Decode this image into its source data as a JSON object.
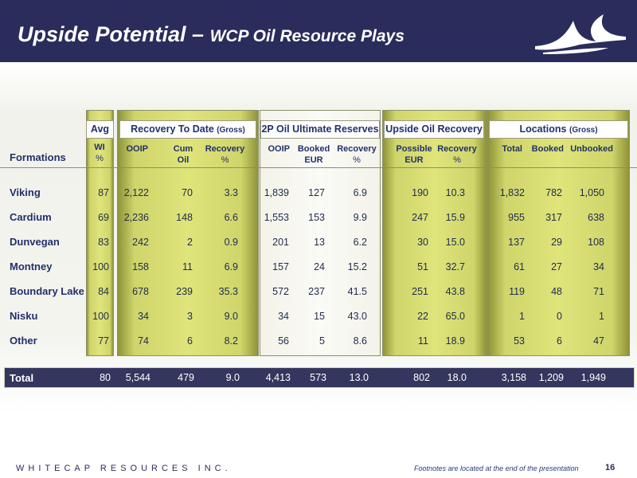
{
  "header": {
    "title_main": "Upside Potential – ",
    "title_sub": "WCP Oil Resource Plays"
  },
  "colors": {
    "header_bg": "#2a2c5c",
    "panel_green": "#d9de74",
    "text": "#22306b",
    "total_bg": "#34365f"
  },
  "groups": {
    "avg": "Avg",
    "recovery_to_date": "Recovery To Date",
    "recovery_to_date_small": "(Gross)",
    "ultimate": "2P Oil Ultimate Reserves",
    "upside": "Upside Oil Recovery",
    "locations": "Locations",
    "locations_small": "(Gross)"
  },
  "columns": {
    "formations": "Formations",
    "wi_1": "WI",
    "wi_2": "%",
    "ooip": "OOIP",
    "cum_1": "Cum",
    "cum_2": "Oil",
    "rec_1": "Recovery",
    "rec_2": "%",
    "ooip2": "OOIP",
    "booked_1": "Booked",
    "booked_2": "EUR",
    "rec2_1": "Recovery",
    "rec2_2": "%",
    "possible_1": "Possible",
    "possible_2": "EUR",
    "rec3_1": "Recovery",
    "rec3_2": "%",
    "total": "Total",
    "booked": "Booked",
    "unbooked": "Unbooked"
  },
  "rows": [
    {
      "name": "Viking",
      "wi": "87",
      "ooip": "2,122",
      "cum": "70",
      "rec": "3.3",
      "ooip2": "1,839",
      "booked_eur": "127",
      "rec2": "6.9",
      "possible": "190",
      "rec3": "10.3",
      "loc_total": "1,832",
      "loc_booked": "782",
      "loc_unbooked": "1,050"
    },
    {
      "name": "Cardium",
      "wi": "69",
      "ooip": "2,236",
      "cum": "148",
      "rec": "6.6",
      "ooip2": "1,553",
      "booked_eur": "153",
      "rec2": "9.9",
      "possible": "247",
      "rec3": "15.9",
      "loc_total": "955",
      "loc_booked": "317",
      "loc_unbooked": "638"
    },
    {
      "name": "Dunvegan",
      "wi": "83",
      "ooip": "242",
      "cum": "2",
      "rec": "0.9",
      "ooip2": "201",
      "booked_eur": "13",
      "rec2": "6.2",
      "possible": "30",
      "rec3": "15.0",
      "loc_total": "137",
      "loc_booked": "29",
      "loc_unbooked": "108"
    },
    {
      "name": "Montney",
      "wi": "100",
      "ooip": "158",
      "cum": "11",
      "rec": "6.9",
      "ooip2": "157",
      "booked_eur": "24",
      "rec2": "15.2",
      "possible": "51",
      "rec3": "32.7",
      "loc_total": "61",
      "loc_booked": "27",
      "loc_unbooked": "34"
    },
    {
      "name": "Boundary Lake",
      "wi": "84",
      "ooip": "678",
      "cum": "239",
      "rec": "35.3",
      "ooip2": "572",
      "booked_eur": "237",
      "rec2": "41.5",
      "possible": "251",
      "rec3": "43.8",
      "loc_total": "119",
      "loc_booked": "48",
      "loc_unbooked": "71"
    },
    {
      "name": "Nisku",
      "wi": "100",
      "ooip": "34",
      "cum": "3",
      "rec": "9.0",
      "ooip2": "34",
      "booked_eur": "15",
      "rec2": "43.0",
      "possible": "22",
      "rec3": "65.0",
      "loc_total": "1",
      "loc_booked": "0",
      "loc_unbooked": "1"
    },
    {
      "name": "Other",
      "wi": "77",
      "ooip": "74",
      "cum": "6",
      "rec": "8.2",
      "ooip2": "56",
      "booked_eur": "5",
      "rec2": "8.6",
      "possible": "11",
      "rec3": "18.9",
      "loc_total": "53",
      "loc_booked": "6",
      "loc_unbooked": "47"
    }
  ],
  "total": {
    "name": "Total",
    "wi": "80",
    "ooip": "5,544",
    "cum": "479",
    "rec": "9.0",
    "ooip2": "4,413",
    "booked_eur": "573",
    "rec2": "13.0",
    "possible": "802",
    "rec3": "18.0",
    "loc_total": "3,158",
    "loc_booked": "1,209",
    "loc_unbooked": "1,949"
  },
  "footer": {
    "company": "WHITECAP RESOURCES INC.",
    "footnote": "Footnotes are located at the end of the presentation",
    "page": "16"
  }
}
